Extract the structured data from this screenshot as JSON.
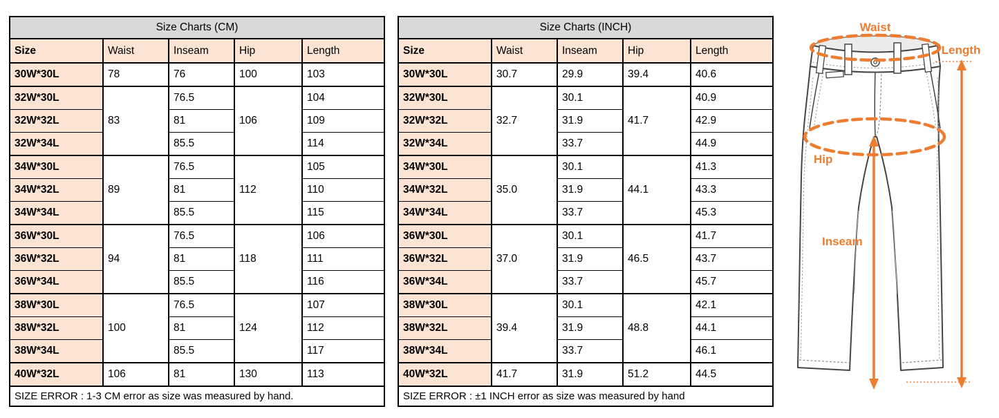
{
  "colors": {
    "accent_orange": "#ED7D31",
    "title_bg": "#d9d9d9",
    "header_bg": "#fce4d4",
    "border": "#000000"
  },
  "cm_chart": {
    "title": "Size Charts (CM)",
    "headers": [
      "Size",
      "Waist",
      "Inseam",
      "Hip",
      "Length"
    ],
    "groups": [
      {
        "waist": "78",
        "hip": "100",
        "rows": [
          {
            "size": "30W*30L",
            "inseam": "76",
            "length": "103"
          }
        ]
      },
      {
        "waist": "83",
        "hip": "106",
        "rows": [
          {
            "size": "32W*30L",
            "inseam": "76.5",
            "length": "104"
          },
          {
            "size": "32W*32L",
            "inseam": "81",
            "length": "109"
          },
          {
            "size": "32W*34L",
            "inseam": "85.5",
            "length": "114"
          }
        ]
      },
      {
        "waist": "89",
        "hip": "112",
        "rows": [
          {
            "size": "34W*30L",
            "inseam": "76.5",
            "length": "105"
          },
          {
            "size": "34W*32L",
            "inseam": "81",
            "length": "110"
          },
          {
            "size": "34W*34L",
            "inseam": "85.5",
            "length": "115"
          }
        ]
      },
      {
        "waist": "94",
        "hip": "118",
        "rows": [
          {
            "size": "36W*30L",
            "inseam": "76.5",
            "length": "106"
          },
          {
            "size": "36W*32L",
            "inseam": "81",
            "length": "111"
          },
          {
            "size": "36W*34L",
            "inseam": "85.5",
            "length": "116"
          }
        ]
      },
      {
        "waist": "100",
        "hip": "124",
        "rows": [
          {
            "size": "38W*30L",
            "inseam": "76.5",
            "length": "107"
          },
          {
            "size": "38W*32L",
            "inseam": "81",
            "length": "112"
          },
          {
            "size": "38W*34L",
            "inseam": "85.5",
            "length": "117"
          }
        ]
      },
      {
        "waist": "106",
        "hip": "130",
        "rows": [
          {
            "size": "40W*32L",
            "inseam": "81",
            "length": "113"
          }
        ]
      }
    ],
    "footer": "SIZE ERROR : 1-3 CM error as size was measured by hand."
  },
  "inch_chart": {
    "title": "Size Charts (INCH)",
    "headers": [
      "Size",
      "Waist",
      "Inseam",
      "Hip",
      "Length"
    ],
    "groups": [
      {
        "waist": "30.7",
        "hip": "39.4",
        "rows": [
          {
            "size": "30W*30L",
            "inseam": "29.9",
            "length": "40.6"
          }
        ]
      },
      {
        "waist": "32.7",
        "hip": "41.7",
        "rows": [
          {
            "size": "32W*30L",
            "inseam": "30.1",
            "length": "40.9"
          },
          {
            "size": "32W*32L",
            "inseam": "31.9",
            "length": "42.9"
          },
          {
            "size": "32W*34L",
            "inseam": "33.7",
            "length": "44.9"
          }
        ]
      },
      {
        "waist": "35.0",
        "hip": "44.1",
        "rows": [
          {
            "size": "34W*30L",
            "inseam": "30.1",
            "length": "41.3"
          },
          {
            "size": "34W*32L",
            "inseam": "31.9",
            "length": "43.3"
          },
          {
            "size": "34W*34L",
            "inseam": "33.7",
            "length": "45.3"
          }
        ]
      },
      {
        "waist": "37.0",
        "hip": "46.5",
        "rows": [
          {
            "size": "36W*30L",
            "inseam": "30.1",
            "length": "41.7"
          },
          {
            "size": "36W*32L",
            "inseam": "31.9",
            "length": "43.7"
          },
          {
            "size": "36W*34L",
            "inseam": "33.7",
            "length": "45.7"
          }
        ]
      },
      {
        "waist": "39.4",
        "hip": "48.8",
        "rows": [
          {
            "size": "38W*30L",
            "inseam": "30.1",
            "length": "42.1"
          },
          {
            "size": "38W*32L",
            "inseam": "31.9",
            "length": "44.1"
          },
          {
            "size": "38W*34L",
            "inseam": "33.7",
            "length": "46.1"
          }
        ]
      },
      {
        "waist": "41.7",
        "hip": "51.2",
        "rows": [
          {
            "size": "40W*32L",
            "inseam": "31.9",
            "length": "44.5"
          }
        ]
      }
    ],
    "footer": "SIZE ERROR : ±1 INCH error as size was measured by hand"
  },
  "diagram": {
    "labels": {
      "waist": "Waist",
      "length": "Length",
      "hip": "Hip",
      "inseam": "Inseam"
    }
  }
}
